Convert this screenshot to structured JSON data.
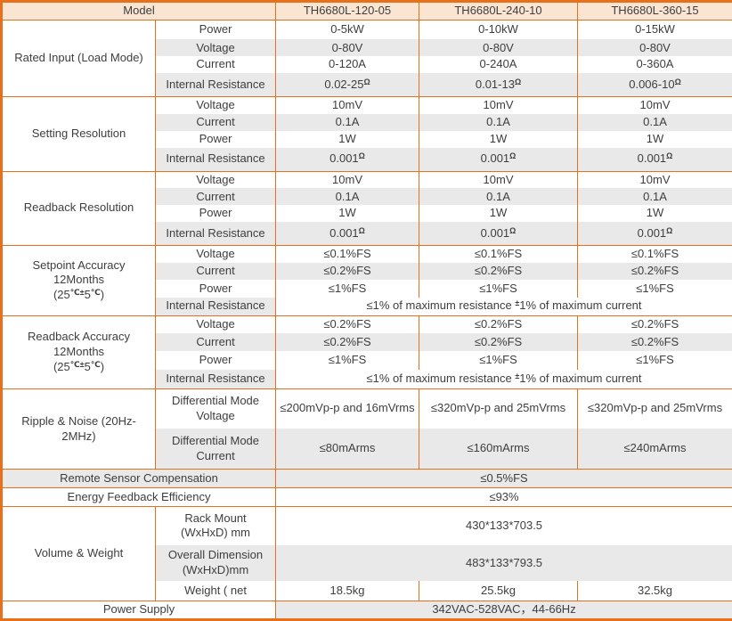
{
  "colors": {
    "border": "#E8701A",
    "header_bg": "#FAE5D3",
    "shade_bg": "#E9E9E9",
    "text": "#3E3E3E"
  },
  "header": {
    "model_label": "Model",
    "models": [
      "TH6680L-120-05",
      "TH6680L-240-10",
      "TH6680L-360-15"
    ]
  },
  "sections": [
    {
      "id": "rated-input",
      "group": [
        "Rated Input (Load Mode)"
      ],
      "rows": [
        {
          "label": "Power",
          "values": [
            "0-5kW",
            "0-10kW",
            "0-15kW"
          ],
          "h": 22
        },
        {
          "label": "Voltage",
          "values": [
            "0-80V",
            "0-80V",
            "0-80V"
          ],
          "shade": true,
          "h": 17
        },
        {
          "label": "Current",
          "values": [
            "0-120A",
            "0-240A",
            "0-360A"
          ],
          "h": 17
        },
        {
          "label": "Internal Resistance",
          "values": [
            "0.02-25⟨Ω⟩",
            "0.01-13⟨Ω⟩",
            "0.006-10⟨Ω⟩"
          ],
          "shade": true,
          "h": 26
        }
      ]
    },
    {
      "id": "setting-resolution",
      "group": [
        "Setting Resolution"
      ],
      "rows": [
        {
          "label": "Voltage",
          "values": [
            "10mV",
            "10mV",
            "10mV"
          ],
          "h": 18
        },
        {
          "label": "Current",
          "values": [
            "0.1A",
            "0.1A",
            "0.1A"
          ],
          "shade": true,
          "h": 17
        },
        {
          "label": "Power",
          "values": [
            "1W",
            "1W",
            "1W"
          ],
          "h": 17
        },
        {
          "label": "Internal Resistance",
          "values": [
            "0.001⟨Ω⟩",
            "0.001⟨Ω⟩",
            "0.001⟨Ω⟩"
          ],
          "shade": true,
          "h": 26
        }
      ]
    },
    {
      "id": "readback-resolution",
      "group": [
        "Readback Resolution"
      ],
      "rows": [
        {
          "label": "Voltage",
          "values": [
            "10mV",
            "10mV",
            "10mV"
          ],
          "h": 18
        },
        {
          "label": "Current",
          "values": [
            "0.1A",
            "0.1A",
            "0.1A"
          ],
          "shade": true,
          "h": 17
        },
        {
          "label": "Power",
          "values": [
            "1W",
            "1W",
            "1W"
          ],
          "h": 17
        },
        {
          "label": "Internal Resistance",
          "values": [
            "0.001⟨Ω⟩",
            "0.001⟨Ω⟩",
            "0.001⟨Ω⟩"
          ],
          "shade": true,
          "h": 26
        }
      ]
    },
    {
      "id": "setpoint-accuracy",
      "group": [
        "Setpoint Accuracy",
        "12Months",
        "(25⟨℃±⟩5⟨℃⟩)"
      ],
      "rows": [
        {
          "label": "Voltage",
          "values": [
            "≤0.1%FS",
            "≤0.1%FS",
            "≤0.1%FS"
          ],
          "h": 19
        },
        {
          "label": "Current",
          "values": [
            "≤0.2%FS",
            "≤0.2%FS",
            "≤0.2%FS"
          ],
          "shade": true,
          "h": 19
        },
        {
          "label": "Power",
          "values": [
            "≤1%FS",
            "≤1%FS",
            "≤1%FS"
          ],
          "h": 20
        },
        {
          "label": "Internal Resistance",
          "span": true,
          "value": "≤1% of maximum resistance ⟨±⟩1% of maximum current",
          "shade_label": true,
          "h": 20
        }
      ]
    },
    {
      "id": "readback-accuracy",
      "group": [
        "Readback Accuracy",
        "12Months",
        "(25⟨℃±⟩5⟨℃⟩)"
      ],
      "rows": [
        {
          "label": "Voltage",
          "values": [
            "≤0.2%FS",
            "≤0.2%FS",
            "≤0.2%FS"
          ],
          "h": 20
        },
        {
          "label": "Current",
          "values": [
            "≤0.2%FS",
            "≤0.2%FS",
            "≤0.2%FS"
          ],
          "shade": true,
          "h": 20
        },
        {
          "label": "Power",
          "values": [
            "≤1%FS",
            "≤1%FS",
            "≤1%FS"
          ],
          "h": 21
        },
        {
          "label": "Internal Resistance",
          "span": true,
          "value": "≤1% of maximum resistance ⟨±⟩1% of maximum current",
          "shade_label": true,
          "h": 21
        }
      ]
    },
    {
      "id": "ripple-noise",
      "group": [
        "Ripple & Noise (20Hz-",
        "2MHz)"
      ],
      "rows": [
        {
          "label": [
            "Differential Mode",
            "Voltage"
          ],
          "values": [
            "≤200mVp-p and 16mVrms",
            "≤320mVp-p and 25mVrms",
            "≤320mVp-p and 25mVrms"
          ],
          "h": 44
        },
        {
          "label": [
            "Differential Mode",
            "Current"
          ],
          "values": [
            "≤80mArms",
            "≤160mArms",
            "≤240mArms"
          ],
          "shade": true,
          "h": 46
        }
      ]
    },
    {
      "id": "remote-sensor",
      "group": null,
      "rows": [
        {
          "label": "Remote Sensor Compensation",
          "label_colspan": 2,
          "span": true,
          "value": "≤0.5%FS",
          "shade": true,
          "h": 21
        }
      ]
    },
    {
      "id": "energy-feedback",
      "group": null,
      "rows": [
        {
          "label": "Energy Feedback Efficiency",
          "label_colspan": 2,
          "span": true,
          "value": "≤93%",
          "h": 20
        }
      ]
    },
    {
      "id": "volume-weight",
      "group": [
        "Volume & Weight"
      ],
      "rows": [
        {
          "label": [
            "Rack Mount",
            "(WxHxD) mm"
          ],
          "span": true,
          "value": "430*133*703.5",
          "h": 44
        },
        {
          "label": [
            "Overall Dimension",
            "(WxHxD)mm"
          ],
          "span": true,
          "value": "483*133*793.5",
          "shade": true,
          "h": 40
        },
        {
          "label": "Weight ( net",
          "values": [
            "18.5kg",
            "25.5kg",
            "32.5kg"
          ],
          "h": 22
        }
      ]
    },
    {
      "id": "power-supply",
      "group": null,
      "rows": [
        {
          "label": "Power Supply",
          "label_colspan": 2,
          "span": true,
          "value": "342VAC-528VAC，44-66Hz",
          "shade_value": true,
          "h": 20
        }
      ]
    }
  ]
}
